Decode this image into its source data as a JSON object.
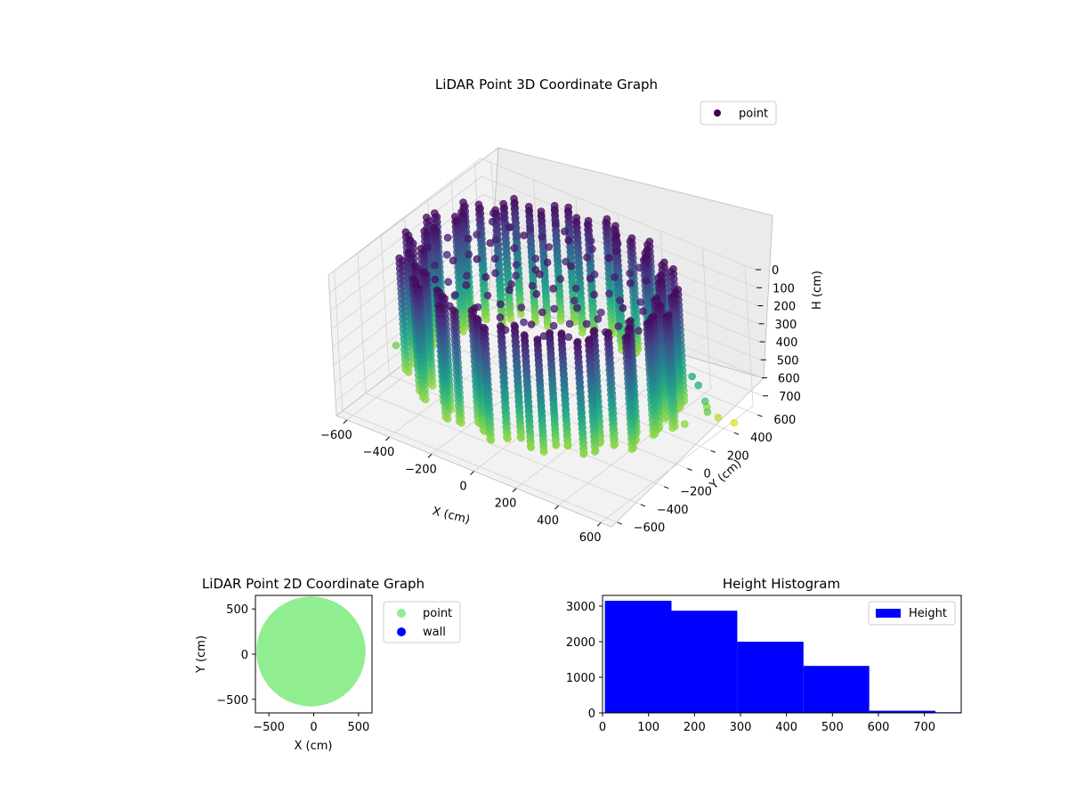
{
  "chart_data": [
    {
      "type": "scatter",
      "title": "LiDAR Point 3D Coordinate Graph",
      "xlabel": "X (cm)",
      "ylabel": "Y (cm)",
      "zlabel": "H (cm)",
      "x_ticks": [
        "−600",
        "−400",
        "−200",
        "0",
        "200",
        "400",
        "600"
      ],
      "y_ticks": [
        "−600",
        "−400",
        "−200",
        "0",
        "200",
        "400",
        "600"
      ],
      "z_ticks": [
        "0",
        "100",
        "200",
        "300",
        "400",
        "500",
        "600",
        "700"
      ],
      "xlim": [
        -650,
        650
      ],
      "ylim": [
        -650,
        650
      ],
      "zlim": [
        0,
        780
      ],
      "z_inverted": true,
      "colormap": "viridis",
      "legend": {
        "placement": "top-right",
        "entries": [
          {
            "name": "point",
            "color": "#440154"
          }
        ]
      },
      "structure": {
        "ring_radius": 560,
        "ring_center": [
          -30,
          30
        ],
        "ring_height_range": [
          20,
          640
        ],
        "ring_columns": 64
      },
      "series": [
        {
          "name": "point",
          "points": [
            {
              "x": -620,
              "y": -180,
              "h": 610
            },
            {
              "x": -600,
              "y": -40,
              "h": 540
            },
            {
              "x": -560,
              "y": 60,
              "h": 470
            },
            {
              "x": -500,
              "y": 120,
              "h": 430
            },
            {
              "x": -440,
              "y": 160,
              "h": 620
            },
            {
              "x": -420,
              "y": 340,
              "h": 40
            },
            {
              "x": -400,
              "y": 380,
              "h": 80
            },
            {
              "x": -380,
              "y": 400,
              "h": 130
            },
            {
              "x": -360,
              "y": 420,
              "h": 180
            },
            {
              "x": 520,
              "y": 300,
              "h": 480
            },
            {
              "x": 560,
              "y": 280,
              "h": 500
            },
            {
              "x": 600,
              "y": 260,
              "h": 560
            },
            {
              "x": 620,
              "y": 240,
              "h": 600
            },
            {
              "x": 560,
              "y": 340,
              "h": 650
            },
            {
              "x": 600,
              "y": 360,
              "h": 700
            },
            {
              "x": 640,
              "y": 420,
              "h": 740
            },
            {
              "x": 560,
              "y": 150,
              "h": 650
            }
          ]
        }
      ]
    },
    {
      "type": "scatter",
      "title": "LiDAR Point 2D Coordinate Graph",
      "xlabel": "X (cm)",
      "ylabel": "Y (cm)",
      "x_ticks": [
        "−500",
        "0",
        "500"
      ],
      "y_ticks": [
        "500",
        "0",
        "−500"
      ],
      "xlim": [
        -650,
        650
      ],
      "ylim": [
        -650,
        650
      ],
      "grid": false,
      "legend": {
        "placement": "outside-right",
        "entries": [
          {
            "name": "point",
            "color": "#90ee90"
          },
          {
            "name": "wall",
            "color": "#0000ff"
          }
        ]
      },
      "series": [
        {
          "name": "point",
          "color": "#90ee90",
          "shape": "filled disc",
          "center": [
            -30,
            30
          ],
          "radius": 560
        },
        {
          "name": "wall",
          "color": "#0000ff",
          "points": []
        }
      ]
    },
    {
      "type": "bar",
      "title": "Height Histogram",
      "xlabel": "",
      "ylabel": "",
      "x_ticks": [
        "0",
        "100",
        "200",
        "300",
        "400",
        "500",
        "600",
        "700"
      ],
      "y_ticks": [
        "0",
        "1000",
        "2000",
        "3000"
      ],
      "xlim": [
        0,
        780
      ],
      "ylim": [
        0,
        3300
      ],
      "legend": {
        "placement": "top-right",
        "entries": [
          {
            "name": "Height",
            "color": "#0000ff"
          }
        ]
      },
      "bins": [
        {
          "from": 5,
          "to": 150,
          "count": 3150
        },
        {
          "from": 150,
          "to": 293,
          "count": 2870
        },
        {
          "from": 293,
          "to": 437,
          "count": 2000
        },
        {
          "from": 437,
          "to": 580,
          "count": 1320
        },
        {
          "from": 580,
          "to": 724,
          "count": 60
        },
        {
          "from": 724,
          "to": 780,
          "count": 18
        }
      ]
    }
  ]
}
